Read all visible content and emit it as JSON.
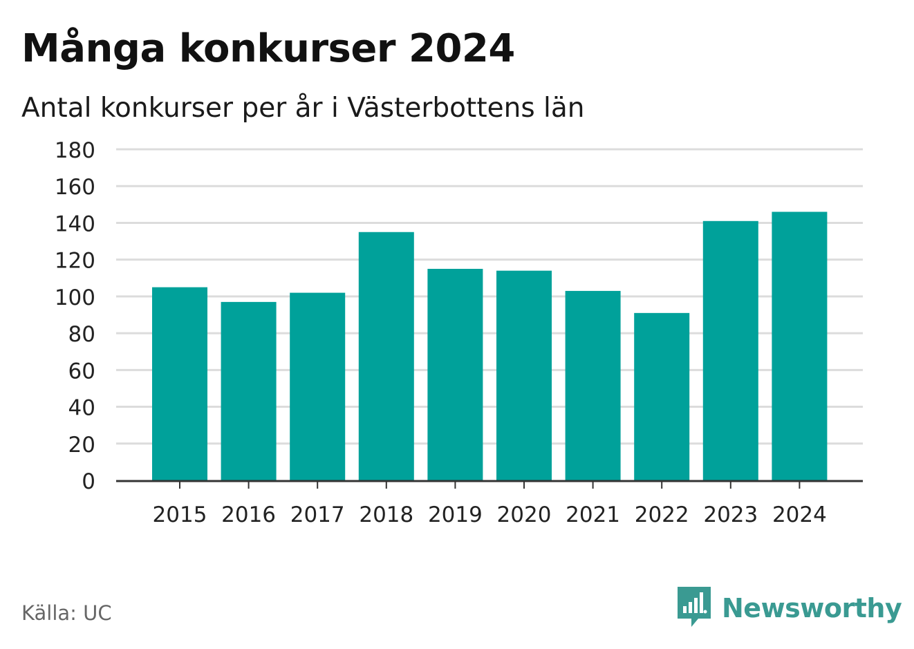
{
  "header": {
    "title": "Många konkurser 2024",
    "subtitle": "Antal konkurser per år i Västerbottens län"
  },
  "footer": {
    "source": "Källa: UC",
    "brand": "Newsworthy"
  },
  "colors": {
    "bar": "#00a19a",
    "grid": "#dcdcdc",
    "axis": "#333333",
    "brand": "#3a9a92"
  },
  "chart_data": {
    "type": "bar",
    "categories": [
      "2015",
      "2016",
      "2017",
      "2018",
      "2019",
      "2020",
      "2021",
      "2022",
      "2023",
      "2024"
    ],
    "values": [
      105,
      97,
      102,
      135,
      115,
      114,
      103,
      91,
      141,
      146
    ],
    "ylim": [
      0,
      180
    ],
    "yticks": [
      0,
      20,
      40,
      60,
      80,
      100,
      120,
      140,
      160,
      180
    ],
    "grid": true
  }
}
